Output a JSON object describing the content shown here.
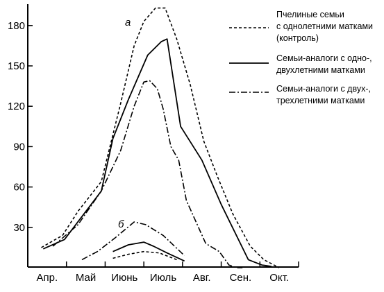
{
  "chart_data": {
    "type": "line",
    "title": "",
    "xlabel": "",
    "ylabel": "",
    "categories": [
      "Апр.",
      "Май",
      "Июнь",
      "Июль",
      "Авг.",
      "Сен.",
      "Окт."
    ],
    "x_range": [
      0,
      7
    ],
    "y_range": [
      0,
      195
    ],
    "y_ticks": [
      30,
      60,
      90,
      120,
      150,
      180
    ],
    "grid": false,
    "legend_position": "top-right",
    "group_labels": {
      "upper": "а",
      "lower": "б"
    },
    "legend": [
      {
        "id": "control",
        "dash": "short-dash",
        "lines": [
          "Пчелиные семьи",
          "с однолетними матками",
          "(контроль)"
        ]
      },
      {
        "id": "analog12",
        "dash": "solid",
        "lines": [
          "Семьи-аналоги с одно-,",
          "двухлетними матками"
        ]
      },
      {
        "id": "analog23",
        "dash": "dash-dot",
        "lines": [
          "Семьи-аналоги с двух-,",
          "трехлетними матками"
        ]
      }
    ],
    "series": [
      {
        "group": "а",
        "style": "control",
        "x": [
          0.35,
          0.9,
          1.3,
          1.9,
          2.4,
          2.75,
          3.0,
          3.3,
          3.55,
          3.85,
          4.2,
          4.55,
          4.9,
          5.3,
          5.75,
          6.1,
          6.5
        ],
        "y": [
          15,
          24,
          42,
          64,
          122,
          165,
          183,
          193,
          193,
          170,
          136,
          94,
          68,
          40,
          16,
          6,
          0
        ]
      },
      {
        "group": "а",
        "style": "analog12",
        "x": [
          0.4,
          0.95,
          1.9,
          2.2,
          2.6,
          3.1,
          3.45,
          3.6,
          3.95,
          4.5,
          5.0,
          5.7,
          6.05,
          6.3
        ],
        "y": [
          14,
          21,
          57,
          96,
          125,
          158,
          168,
          170,
          105,
          80,
          47,
          6,
          2,
          1
        ]
      },
      {
        "group": "а",
        "style": "analog23",
        "x": [
          0.65,
          1.3,
          1.9,
          2.4,
          2.75,
          3.0,
          3.15,
          3.35,
          3.5,
          3.7,
          3.9,
          4.1,
          4.6,
          4.95,
          5.2,
          5.4,
          5.55
        ],
        "y": [
          16,
          32,
          57,
          87,
          120,
          138,
          139,
          133,
          118,
          90,
          80,
          50,
          18,
          12,
          2,
          0,
          0
        ]
      },
      {
        "group": "б",
        "style": "control",
        "x": [
          2.2,
          2.6,
          3.0,
          3.4,
          3.85
        ],
        "y": [
          7,
          10,
          12,
          11,
          6
        ]
      },
      {
        "group": "б",
        "style": "analog12",
        "x": [
          2.2,
          2.6,
          3.0,
          3.25,
          3.6,
          4.05
        ],
        "y": [
          12,
          17,
          19,
          16,
          11,
          5
        ]
      },
      {
        "group": "б",
        "style": "analog23",
        "x": [
          1.4,
          1.8,
          2.25,
          2.75,
          3.05,
          3.5,
          4.05
        ],
        "y": [
          6,
          12,
          22,
          34,
          32,
          24,
          9
        ]
      }
    ]
  }
}
